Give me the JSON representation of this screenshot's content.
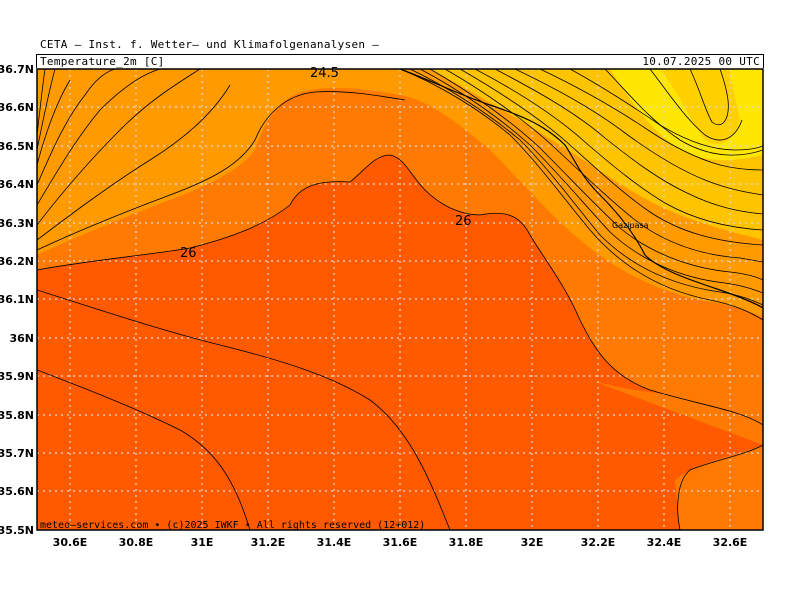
{
  "header": {
    "institute": "CETA – Inst. f. Wetter– und Klimafolgenanalysen –",
    "variable": "Temperature_2m [C]",
    "valid_time": "10.07.2025 00 UTC"
  },
  "credit": "meteo–services.com • (c)2025 IWKF • All rights reserved (12+012)",
  "axes": {
    "y_labels": [
      "36.7N",
      "36.6N",
      "36.5N",
      "36.4N",
      "36.3N",
      "36.2N",
      "36.1N",
      "36N",
      "35.9N",
      "35.8N",
      "35.7N",
      "35.6N",
      "35.5N"
    ],
    "x_labels": [
      "30.6E",
      "30.8E",
      "31E",
      "31.2E",
      "31.4E",
      "31.6E",
      "31.8E",
      "32E",
      "32.2E",
      "32.4E",
      "32.6E"
    ]
  },
  "contour_labels": [
    {
      "text": "24.5"
    },
    {
      "text": "26"
    },
    {
      "text": "26"
    }
  ],
  "places": [
    {
      "name": "Gazipasa"
    }
  ],
  "colors": {
    "frame": "#000000",
    "t_low": "#ffe600",
    "t_mid_low": "#ffc400",
    "t_mid": "#ff9a00",
    "t_mid_high": "#ff7a00",
    "t_high": "#ff5a00",
    "grid": "#d9d9d9"
  }
}
